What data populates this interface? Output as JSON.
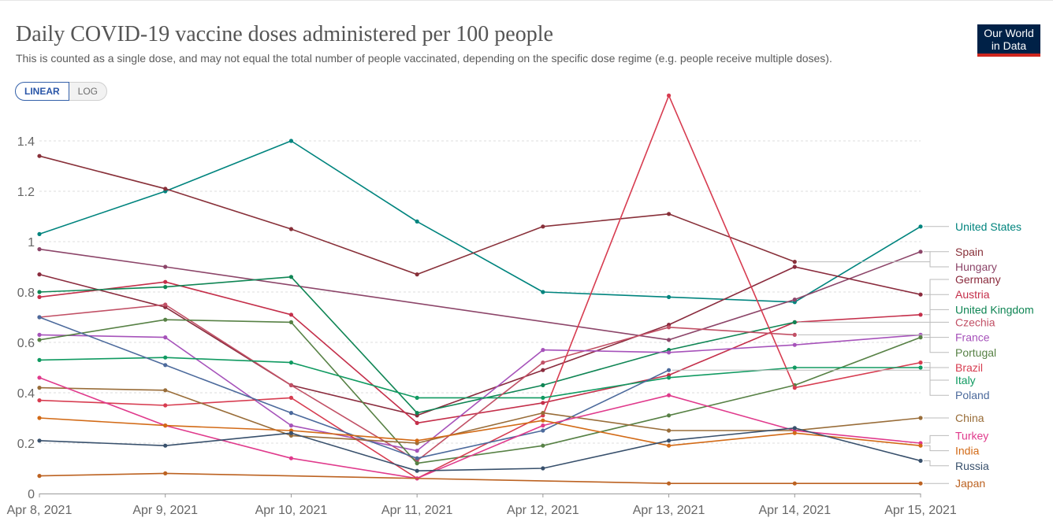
{
  "header": {
    "title": "Daily COVID-19 vaccine doses administered per 100 people",
    "subtitle": "This is counted as a single dose, and may not equal the total number of people vaccinated, depending on the specific dose regime (e.g. people receive multiple doses).",
    "logo_line1": "Our World",
    "logo_line2": "in Data"
  },
  "controls": {
    "linear_label": "LINEAR",
    "log_label": "LOG",
    "active": "LINEAR"
  },
  "colors": {
    "grid": "#dddddd",
    "axis": "#999999",
    "text": "#666666"
  },
  "chart_data": {
    "type": "line",
    "title": "Daily COVID-19 vaccine doses administered per 100 people",
    "xlabel": "",
    "ylabel": "",
    "categories": [
      "Apr 8, 2021",
      "Apr 9, 2021",
      "Apr 10, 2021",
      "Apr 11, 2021",
      "Apr 12, 2021",
      "Apr 13, 2021",
      "Apr 14, 2021",
      "Apr 15, 2021"
    ],
    "ylim": [
      0,
      1.5
    ],
    "yticks": [
      0,
      0.2,
      0.4,
      0.6,
      0.8,
      1,
      1.2,
      1.4
    ],
    "ytick_labels": [
      "0",
      "0.2",
      "0.4",
      "0.6",
      "0.8",
      "1",
      "1.2",
      "1.4"
    ],
    "grid": true,
    "legend": "right, labels at line ends",
    "series": [
      {
        "name": "United States",
        "color": "#00847e",
        "values": [
          1.03,
          1.2,
          1.4,
          1.08,
          0.8,
          0.78,
          0.76,
          1.06
        ]
      },
      {
        "name": "Spain",
        "color": "#883039",
        "values": [
          1.34,
          1.21,
          1.05,
          0.87,
          1.06,
          1.11,
          0.92,
          null
        ]
      },
      {
        "name": "Hungary",
        "color": "#8c4569",
        "values": [
          0.97,
          0.9,
          null,
          null,
          null,
          0.61,
          0.77,
          0.96
        ]
      },
      {
        "name": "Germany",
        "color": "#8a2b3d",
        "values": [
          0.87,
          0.74,
          0.43,
          0.31,
          0.49,
          0.67,
          0.9,
          0.79
        ]
      },
      {
        "name": "Austria",
        "color": "#c42f4a",
        "values": [
          0.78,
          0.84,
          0.71,
          0.28,
          0.36,
          0.47,
          0.68,
          0.71
        ]
      },
      {
        "name": "United Kingdom",
        "color": "#0f8554",
        "values": [
          0.8,
          0.82,
          0.86,
          0.32,
          0.43,
          0.57,
          0.68,
          null
        ]
      },
      {
        "name": "Czechia",
        "color": "#c15065",
        "values": [
          0.7,
          0.75,
          0.43,
          0.13,
          0.52,
          0.66,
          0.63,
          null
        ]
      },
      {
        "name": "France",
        "color": "#a652ba",
        "values": [
          0.63,
          0.62,
          0.27,
          0.17,
          0.57,
          0.56,
          0.59,
          0.63
        ]
      },
      {
        "name": "Portugal",
        "color": "#578145",
        "values": [
          0.61,
          0.69,
          0.68,
          0.12,
          0.19,
          0.31,
          0.43,
          0.62
        ]
      },
      {
        "name": "Brazil",
        "color": "#d73c50",
        "values": [
          0.37,
          0.35,
          0.38,
          0.06,
          0.31,
          1.58,
          0.42,
          0.52
        ]
      },
      {
        "name": "Italy",
        "color": "#109a61",
        "values": [
          0.53,
          0.54,
          0.52,
          0.38,
          0.38,
          0.46,
          0.5,
          0.5
        ]
      },
      {
        "name": "Poland",
        "color": "#4c6a9c",
        "values": [
          0.7,
          0.51,
          0.32,
          0.14,
          0.25,
          0.49,
          null,
          null
        ]
      },
      {
        "name": "China",
        "color": "#996d39",
        "values": [
          0.42,
          0.41,
          0.23,
          0.2,
          0.32,
          0.25,
          0.25,
          0.3
        ]
      },
      {
        "name": "Turkey",
        "color": "#e03a8c",
        "values": [
          0.46,
          0.27,
          0.14,
          0.06,
          0.27,
          0.39,
          0.25,
          0.2
        ]
      },
      {
        "name": "India",
        "color": "#d26a16",
        "values": [
          0.3,
          0.27,
          0.25,
          0.21,
          0.29,
          0.19,
          0.24,
          0.19
        ]
      },
      {
        "name": "Russia",
        "color": "#38506c",
        "values": [
          0.21,
          0.19,
          0.24,
          0.09,
          0.1,
          0.21,
          0.26,
          0.13
        ]
      },
      {
        "name": "Japan",
        "color": "#bc6221",
        "values": [
          0.07,
          0.08,
          null,
          null,
          null,
          0.04,
          0.04,
          0.04
        ]
      }
    ],
    "end_labels": [
      {
        "name": "United States",
        "value": 1.06
      },
      {
        "name": "Spain",
        "value": 0.96
      },
      {
        "name": "Hungary",
        "value": 0.9
      },
      {
        "name": "Germany",
        "value": 0.85
      },
      {
        "name": "Austria",
        "value": 0.79
      },
      {
        "name": "United Kingdom",
        "value": 0.73
      },
      {
        "name": "Czechia",
        "value": 0.68
      },
      {
        "name": "France",
        "value": 0.62
      },
      {
        "name": "Portugal",
        "value": 0.56
      },
      {
        "name": "Brazil",
        "value": 0.5
      },
      {
        "name": "Italy",
        "value": 0.45
      },
      {
        "name": "Poland",
        "value": 0.39
      },
      {
        "name": "China",
        "value": 0.3
      },
      {
        "name": "Turkey",
        "value": 0.23
      },
      {
        "name": "India",
        "value": 0.17
      },
      {
        "name": "Russia",
        "value": 0.11
      },
      {
        "name": "Japan",
        "value": 0.04
      }
    ]
  }
}
